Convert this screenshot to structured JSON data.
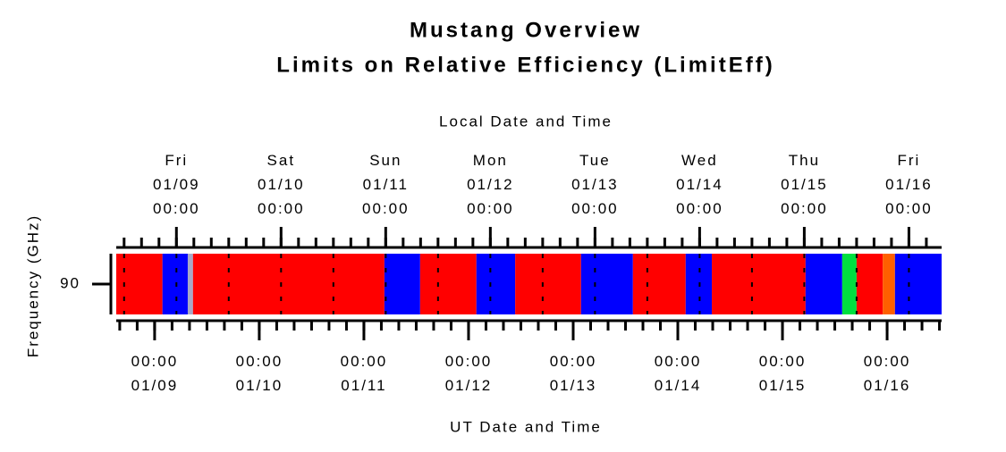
{
  "chart_data": {
    "type": "timeline",
    "title": "Mustang Overview",
    "subtitle": "Limits on Relative Efficiency (LimitEff)",
    "x2label": "Local Date and Time",
    "xlabel": "UT Date and Time",
    "ylabel": "Frequency (GHz)",
    "xlim": [
      -8.8,
      180.5
    ],
    "xticks": [
      {
        "value": 0,
        "label": "00:00\n01/09"
      },
      {
        "value": 24,
        "label": "00:00\n01/10"
      },
      {
        "value": 48,
        "label": "00:00\n01/11"
      },
      {
        "value": 72,
        "label": "00:00\n01/12"
      },
      {
        "value": 96,
        "label": "00:00\n01/13"
      },
      {
        "value": 120,
        "label": "00:00\n01/14"
      },
      {
        "value": 144,
        "label": "00:00\n01/15"
      },
      {
        "value": 168,
        "label": "00:00\n01/16"
      }
    ],
    "x2ticks": [
      {
        "value": 5,
        "label": "Fri\n01/09\n00:00"
      },
      {
        "value": 29,
        "label": "Sat\n01/10\n00:00"
      },
      {
        "value": 53,
        "label": "Sun\n01/11\n00:00"
      },
      {
        "value": 77,
        "label": "Mon\n01/12\n00:00"
      },
      {
        "value": 101,
        "label": "Tue\n01/13\n00:00"
      },
      {
        "value": 125,
        "label": "Wed\n01/14\n00:00"
      },
      {
        "value": 149,
        "label": "Thu\n01/15\n00:00"
      },
      {
        "value": 173,
        "label": "Fri\n01/16\n00:00"
      }
    ],
    "xminorticks": [
      -8,
      -4,
      0,
      4,
      8,
      12,
      16,
      20,
      24,
      28,
      32,
      36,
      40,
      44,
      48,
      52,
      56,
      60,
      64,
      68,
      72,
      76,
      80,
      84,
      88,
      92,
      96,
      100,
      104,
      108,
      112,
      116,
      120,
      124,
      128,
      132,
      136,
      140,
      144,
      148,
      152,
      156,
      160,
      164,
      168,
      172,
      176,
      180
    ],
    "x2minorticks": [
      -7,
      -3,
      1,
      5,
      9,
      13,
      17,
      21,
      25,
      29,
      33,
      37,
      41,
      45,
      49,
      53,
      57,
      61,
      65,
      69,
      73,
      77,
      81,
      85,
      89,
      93,
      97,
      101,
      105,
      109,
      113,
      117,
      121,
      125,
      129,
      133,
      137,
      141,
      145,
      149,
      153,
      157,
      161,
      165,
      169,
      173,
      177
    ],
    "xgrid": [
      -7,
      5,
      17,
      29,
      41,
      53,
      65,
      77,
      89,
      101,
      113,
      125,
      137,
      149,
      161,
      173
    ],
    "yticks": [
      90
    ],
    "segments": [
      {
        "start": -8.8,
        "end": 1.8,
        "color": "#ff0000"
      },
      {
        "start": 1.8,
        "end": 7.6,
        "color": "#0000ff"
      },
      {
        "start": 7.6,
        "end": 8.8,
        "color": "#a8a8c8"
      },
      {
        "start": 8.8,
        "end": 52.7,
        "color": "#ff0000"
      },
      {
        "start": 52.7,
        "end": 60.9,
        "color": "#0000ff"
      },
      {
        "start": 60.9,
        "end": 73.8,
        "color": "#ff0000"
      },
      {
        "start": 73.8,
        "end": 82.7,
        "color": "#0000ff"
      },
      {
        "start": 82.7,
        "end": 97.8,
        "color": "#ff0000"
      },
      {
        "start": 97.8,
        "end": 109.7,
        "color": "#0000ff"
      },
      {
        "start": 109.7,
        "end": 121.8,
        "color": "#ff0000"
      },
      {
        "start": 121.8,
        "end": 127.8,
        "color": "#0000ff"
      },
      {
        "start": 127.8,
        "end": 149.3,
        "color": "#ff0000"
      },
      {
        "start": 149.3,
        "end": 157.7,
        "color": "#0000ff"
      },
      {
        "start": 157.7,
        "end": 161.0,
        "color": "#00e040"
      },
      {
        "start": 161.0,
        "end": 167.0,
        "color": "#ff0000"
      },
      {
        "start": 167.0,
        "end": 169.8,
        "color": "#ff6000"
      },
      {
        "start": 169.8,
        "end": 180.5,
        "color": "#0000ff"
      }
    ]
  }
}
